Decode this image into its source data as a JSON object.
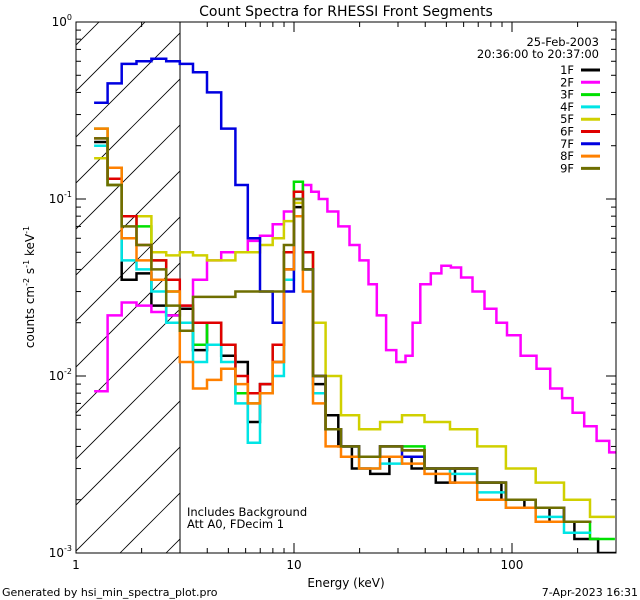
{
  "chart_data": {
    "type": "line",
    "title": "Count Spectra for RHESSI Front Segments",
    "xlabel": "Energy (keV)",
    "ylabel_parts": [
      "counts cm",
      "-2",
      " s",
      "-1",
      " keV",
      "-1"
    ],
    "xscale": "log",
    "yscale": "log",
    "xlim": [
      1,
      300
    ],
    "ylim": [
      0.001,
      1
    ],
    "x_tick_labels": [
      {
        "value": 1,
        "label": "1"
      },
      {
        "value": 10,
        "label": "10"
      },
      {
        "value": 100,
        "label": "100"
      }
    ],
    "y_tick_labels": [
      {
        "value": 1,
        "base": "10",
        "exp": "0"
      },
      {
        "value": 0.1,
        "base": "10",
        "exp": "-1"
      },
      {
        "value": 0.01,
        "base": "10",
        "exp": "-2"
      },
      {
        "value": 0.001,
        "base": "10",
        "exp": "-3"
      }
    ],
    "hatched_region_xmax": 3,
    "date": "25-Feb-2003",
    "time_range": "20:36:00 to 20:37:00",
    "annotations": [
      "Includes Background",
      "Att A0, FDecim 1"
    ],
    "legend_position": "top-right",
    "series": [
      {
        "name": "1F",
        "color": "#000000",
        "points": [
          [
            1.3,
            0.21
          ],
          [
            1.5,
            0.12
          ],
          [
            1.75,
            0.035
          ],
          [
            2.05,
            0.038
          ],
          [
            2.4,
            0.025
          ],
          [
            2.8,
            0.022
          ],
          [
            3.2,
            0.024
          ],
          [
            3.7,
            0.014
          ],
          [
            4.3,
            0.02
          ],
          [
            5.0,
            0.013
          ],
          [
            5.8,
            0.012
          ],
          [
            6.5,
            0.0055
          ],
          [
            7.5,
            0.009
          ],
          [
            8.5,
            0.012
          ],
          [
            9.5,
            0.04
          ],
          [
            10.5,
            0.09
          ],
          [
            11.5,
            0.04
          ],
          [
            13,
            0.009
          ],
          [
            15,
            0.006
          ],
          [
            17,
            0.004
          ],
          [
            20,
            0.003
          ],
          [
            25,
            0.0028
          ],
          [
            30,
            0.0035
          ],
          [
            40,
            0.003
          ],
          [
            50,
            0.0025
          ],
          [
            60,
            0.003
          ],
          [
            80,
            0.0025
          ],
          [
            100,
            0.002
          ],
          [
            130,
            0.0018
          ],
          [
            170,
            0.0015
          ],
          [
            220,
            0.0012
          ],
          [
            280,
            0.001
          ]
        ]
      },
      {
        "name": "2F",
        "color": "#ff00ff",
        "points": [
          [
            1.3,
            0.0082
          ],
          [
            1.5,
            0.022
          ],
          [
            1.75,
            0.026
          ],
          [
            2.05,
            0.025
          ],
          [
            2.4,
            0.023
          ],
          [
            2.8,
            0.022
          ],
          [
            3.2,
            0.025
          ],
          [
            3.7,
            0.035
          ],
          [
            4.3,
            0.045
          ],
          [
            5.0,
            0.05
          ],
          [
            5.8,
            0.05
          ],
          [
            6.5,
            0.058
          ],
          [
            7.5,
            0.062
          ],
          [
            8.5,
            0.072
          ],
          [
            9.5,
            0.085
          ],
          [
            10.5,
            0.1
          ],
          [
            11.5,
            0.12
          ],
          [
            12.5,
            0.11
          ],
          [
            13.5,
            0.1
          ],
          [
            15,
            0.085
          ],
          [
            17,
            0.07
          ],
          [
            19,
            0.055
          ],
          [
            21,
            0.045
          ],
          [
            23,
            0.033
          ],
          [
            25,
            0.022
          ],
          [
            28,
            0.014
          ],
          [
            31,
            0.012
          ],
          [
            34,
            0.013
          ],
          [
            36,
            0.02
          ],
          [
            40,
            0.033
          ],
          [
            45,
            0.038
          ],
          [
            50,
            0.042
          ],
          [
            55,
            0.041
          ],
          [
            62,
            0.036
          ],
          [
            70,
            0.03
          ],
          [
            80,
            0.024
          ],
          [
            90,
            0.02
          ],
          [
            100,
            0.017
          ],
          [
            120,
            0.013
          ],
          [
            140,
            0.011
          ],
          [
            160,
            0.0085
          ],
          [
            180,
            0.0075
          ],
          [
            200,
            0.0062
          ],
          [
            230,
            0.0052
          ],
          [
            260,
            0.0043
          ],
          [
            300,
            0.0037
          ]
        ]
      },
      {
        "name": "3F",
        "color": "#00e000",
        "points": [
          [
            1.3,
            0.25
          ],
          [
            1.5,
            0.15
          ],
          [
            1.75,
            0.08
          ],
          [
            2.05,
            0.07
          ],
          [
            2.4,
            0.045
          ],
          [
            2.8,
            0.03
          ],
          [
            3.2,
            0.02
          ],
          [
            3.7,
            0.015
          ],
          [
            4.3,
            0.02
          ],
          [
            5.0,
            0.015
          ],
          [
            5.8,
            0.008
          ],
          [
            6.5,
            0.007
          ],
          [
            7.5,
            0.008
          ],
          [
            8.5,
            0.015
          ],
          [
            9.5,
            0.05
          ],
          [
            10.5,
            0.125
          ],
          [
            11.5,
            0.05
          ],
          [
            13,
            0.01
          ],
          [
            15,
            0.005
          ],
          [
            18,
            0.004
          ],
          [
            22,
            0.0035
          ],
          [
            28,
            0.004
          ],
          [
            35,
            0.004
          ],
          [
            45,
            0.003
          ],
          [
            60,
            0.003
          ],
          [
            80,
            0.0025
          ],
          [
            110,
            0.002
          ],
          [
            150,
            0.0018
          ],
          [
            200,
            0.0015
          ],
          [
            260,
            0.0012
          ]
        ]
      },
      {
        "name": "4F",
        "color": "#00e5e5",
        "points": [
          [
            1.3,
            0.2
          ],
          [
            1.5,
            0.12
          ],
          [
            1.75,
            0.045
          ],
          [
            2.05,
            0.04
          ],
          [
            2.4,
            0.03
          ],
          [
            2.8,
            0.02
          ],
          [
            3.2,
            0.02
          ],
          [
            3.7,
            0.012
          ],
          [
            4.3,
            0.015
          ],
          [
            5.0,
            0.012
          ],
          [
            5.8,
            0.007
          ],
          [
            6.5,
            0.0042
          ],
          [
            7.5,
            0.008
          ],
          [
            8.5,
            0.01
          ],
          [
            9.5,
            0.035
          ],
          [
            10.5,
            0.1
          ],
          [
            11.5,
            0.04
          ],
          [
            13,
            0.008
          ],
          [
            15,
            0.005
          ],
          [
            18,
            0.004
          ],
          [
            22,
            0.003
          ],
          [
            28,
            0.0032
          ],
          [
            35,
            0.0035
          ],
          [
            45,
            0.003
          ],
          [
            60,
            0.0028
          ],
          [
            80,
            0.0022
          ],
          [
            110,
            0.0018
          ],
          [
            150,
            0.0016
          ],
          [
            200,
            0.0013
          ]
        ]
      },
      {
        "name": "5F",
        "color": "#d0d000",
        "points": [
          [
            1.3,
            0.17
          ],
          [
            1.5,
            0.12
          ],
          [
            1.75,
            0.08
          ],
          [
            2.05,
            0.08
          ],
          [
            2.4,
            0.05
          ],
          [
            2.8,
            0.048
          ],
          [
            3.2,
            0.05
          ],
          [
            3.7,
            0.048
          ],
          [
            4.3,
            0.045
          ],
          [
            5.0,
            0.045
          ],
          [
            5.8,
            0.05
          ],
          [
            6.5,
            0.05
          ],
          [
            7.5,
            0.055
          ],
          [
            8.5,
            0.06
          ],
          [
            9.5,
            0.075
          ],
          [
            10.5,
            0.095
          ],
          [
            11.5,
            0.05
          ],
          [
            13,
            0.02
          ],
          [
            15,
            0.01
          ],
          [
            18,
            0.006
          ],
          [
            22,
            0.005
          ],
          [
            28,
            0.0055
          ],
          [
            35,
            0.006
          ],
          [
            45,
            0.0055
          ],
          [
            60,
            0.005
          ],
          [
            80,
            0.004
          ],
          [
            110,
            0.003
          ],
          [
            150,
            0.0025
          ],
          [
            200,
            0.002
          ],
          [
            260,
            0.0016
          ]
        ]
      },
      {
        "name": "6F",
        "color": "#e00000",
        "points": [
          [
            1.3,
            0.22
          ],
          [
            1.5,
            0.13
          ],
          [
            1.75,
            0.08
          ],
          [
            2.05,
            0.055
          ],
          [
            2.4,
            0.045
          ],
          [
            2.8,
            0.035
          ],
          [
            3.2,
            0.025
          ],
          [
            3.7,
            0.02
          ],
          [
            4.3,
            0.02
          ],
          [
            5.0,
            0.015
          ],
          [
            5.8,
            0.01
          ],
          [
            6.5,
            0.008
          ],
          [
            7.5,
            0.009
          ],
          [
            8.5,
            0.015
          ],
          [
            9.5,
            0.05
          ],
          [
            10.5,
            0.11
          ],
          [
            11.5,
            0.05
          ],
          [
            13,
            0.01
          ],
          [
            15,
            0.005
          ],
          [
            18,
            0.004
          ],
          [
            22,
            0.0035
          ],
          [
            28,
            0.004
          ],
          [
            35,
            0.0038
          ],
          [
            45,
            0.003
          ],
          [
            60,
            0.003
          ],
          [
            80,
            0.0025
          ],
          [
            110,
            0.002
          ],
          [
            150,
            0.0018
          ],
          [
            200,
            0.0015
          ]
        ]
      },
      {
        "name": "7F",
        "color": "#0000e0",
        "points": [
          [
            1.3,
            0.35
          ],
          [
            1.5,
            0.45
          ],
          [
            1.75,
            0.58
          ],
          [
            2.05,
            0.6
          ],
          [
            2.4,
            0.62
          ],
          [
            2.8,
            0.6
          ],
          [
            3.2,
            0.58
          ],
          [
            3.7,
            0.52
          ],
          [
            4.3,
            0.4
          ],
          [
            5.0,
            0.25
          ],
          [
            5.8,
            0.12
          ],
          [
            6.5,
            0.06
          ],
          [
            7.5,
            0.03
          ],
          [
            8.5,
            0.02
          ],
          [
            9.5,
            0.03
          ],
          [
            10.5,
            0.08
          ],
          [
            11.5,
            0.04
          ],
          [
            13,
            0.01
          ],
          [
            15,
            0.005
          ],
          [
            18,
            0.004
          ],
          [
            22,
            0.0035
          ],
          [
            28,
            0.004
          ],
          [
            35,
            0.0035
          ],
          [
            45,
            0.003
          ],
          [
            60,
            0.003
          ],
          [
            80,
            0.0025
          ],
          [
            110,
            0.002
          ],
          [
            150,
            0.0018
          ],
          [
            200,
            0.0015
          ]
        ]
      },
      {
        "name": "8F",
        "color": "#ff8000",
        "points": [
          [
            1.3,
            0.25
          ],
          [
            1.5,
            0.15
          ],
          [
            1.75,
            0.06
          ],
          [
            2.05,
            0.045
          ],
          [
            2.4,
            0.035
          ],
          [
            2.8,
            0.03
          ],
          [
            3.2,
            0.012
          ],
          [
            3.7,
            0.0085
          ],
          [
            4.3,
            0.0095
          ],
          [
            5.0,
            0.011
          ],
          [
            5.8,
            0.009
          ],
          [
            6.5,
            0.007
          ],
          [
            7.5,
            0.008
          ],
          [
            8.5,
            0.012
          ],
          [
            9.5,
            0.04
          ],
          [
            10.5,
            0.08
          ],
          [
            11.5,
            0.03
          ],
          [
            13,
            0.007
          ],
          [
            15,
            0.004
          ],
          [
            18,
            0.0035
          ],
          [
            22,
            0.003
          ],
          [
            28,
            0.0035
          ],
          [
            35,
            0.0032
          ],
          [
            45,
            0.0028
          ],
          [
            60,
            0.0025
          ],
          [
            80,
            0.002
          ],
          [
            110,
            0.0018
          ],
          [
            150,
            0.0015
          ]
        ]
      },
      {
        "name": "9F",
        "color": "#6e6e00",
        "points": [
          [
            1.3,
            0.22
          ],
          [
            1.5,
            0.12
          ],
          [
            1.75,
            0.07
          ],
          [
            2.05,
            0.055
          ],
          [
            2.4,
            0.04
          ],
          [
            2.8,
            0.025
          ],
          [
            3.2,
            0.018
          ],
          [
            3.7,
            0.028
          ],
          [
            4.3,
            0.028
          ],
          [
            5.0,
            0.028
          ],
          [
            5.8,
            0.03
          ],
          [
            6.5,
            0.03
          ],
          [
            7.5,
            0.03
          ],
          [
            8.5,
            0.03
          ],
          [
            9.5,
            0.055
          ],
          [
            10.5,
            0.1
          ],
          [
            11.5,
            0.04
          ],
          [
            13,
            0.01
          ],
          [
            15,
            0.005
          ],
          [
            18,
            0.004
          ],
          [
            22,
            0.0035
          ],
          [
            28,
            0.004
          ],
          [
            35,
            0.0038
          ],
          [
            45,
            0.003
          ],
          [
            60,
            0.003
          ],
          [
            80,
            0.0025
          ],
          [
            110,
            0.002
          ],
          [
            150,
            0.0018
          ],
          [
            200,
            0.0015
          ]
        ]
      }
    ]
  },
  "footer": {
    "left": "Generated by hsi_min_spectra_plot.pro",
    "right": "7-Apr-2023 16:31"
  }
}
